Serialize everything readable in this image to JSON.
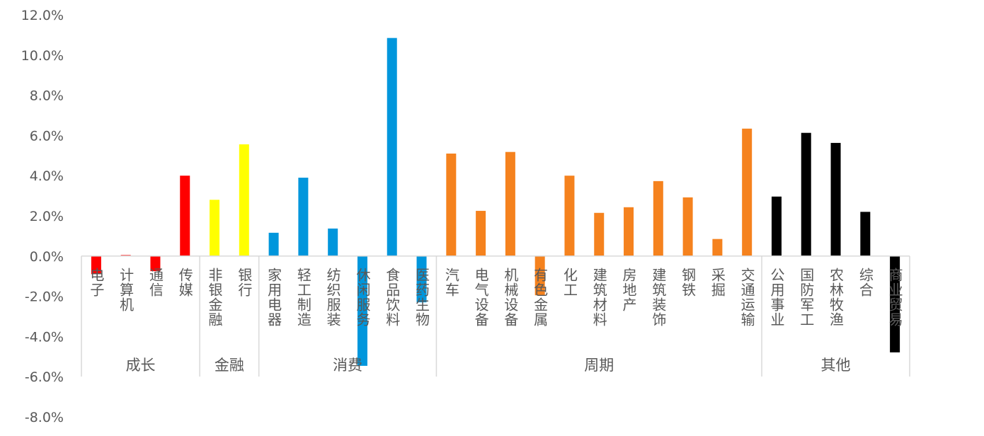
{
  "chart_data": {
    "type": "bar",
    "title": "",
    "xlabel": "",
    "ylabel": "",
    "ylim": [
      -8,
      12
    ],
    "ytick_step": 2,
    "ytick_format": "percent_1dp",
    "grid": false,
    "legend": "none",
    "groups": [
      {
        "name": "成长",
        "color": "#FF0000",
        "categories": [
          "电子",
          "计算机",
          "通信",
          "传媒"
        ],
        "values": [
          -0.9,
          0.05,
          -0.75,
          4.0
        ]
      },
      {
        "name": "金融",
        "color": "#FFFF00",
        "categories": [
          "非银金融",
          "银行"
        ],
        "values": [
          2.8,
          5.56
        ]
      },
      {
        "name": "消费",
        "color": "#0096DC",
        "categories": [
          "家用电器",
          "轻工制造",
          "纺织服装",
          "休闲服务",
          "食品饮料",
          "医药生物"
        ],
        "values": [
          1.16,
          3.9,
          1.37,
          -5.46,
          10.85,
          -2.3
        ]
      },
      {
        "name": "周期",
        "color": "#F5821E",
        "categories": [
          "汽车",
          "电气设备",
          "机械设备",
          "有色金属",
          "化工",
          "建筑材料",
          "房地产",
          "建筑装饰",
          "钢铁",
          "采掘",
          "交通运输"
        ],
        "values": [
          5.1,
          2.25,
          5.18,
          -1.95,
          4.0,
          2.15,
          2.43,
          3.73,
          2.92,
          0.85,
          6.34
        ]
      },
      {
        "name": "其他",
        "color": "#000000",
        "categories": [
          "公用事业",
          "国防军工",
          "农林牧渔",
          "综合",
          "商业贸易"
        ],
        "values": [
          2.96,
          6.13,
          5.63,
          2.2,
          -4.79
        ]
      }
    ]
  }
}
